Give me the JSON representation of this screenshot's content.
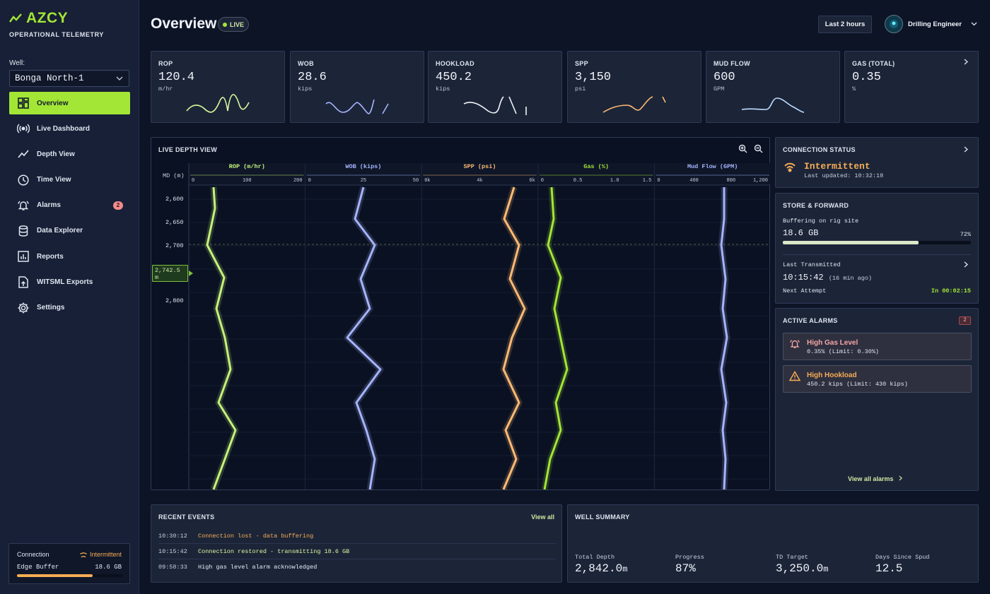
{
  "app": {
    "brand": "AZCY",
    "subtitle": "OPERATIONAL TELEMETRY"
  },
  "sidebar": {
    "well_label": "Well:",
    "well_value": "Bonga North-1",
    "items": [
      {
        "label": "Overview",
        "icon": "dashboard-grid-icon",
        "active": true
      },
      {
        "label": "Live Dashboard",
        "icon": "broadcast-icon"
      },
      {
        "label": "Depth View",
        "icon": "trend-line-icon"
      },
      {
        "label": "Time View",
        "icon": "clock-icon"
      },
      {
        "label": "Alarms",
        "icon": "bell-icon",
        "badge": "2"
      },
      {
        "label": "Data Explorer",
        "icon": "database-icon"
      },
      {
        "label": "Reports",
        "icon": "report-chart-icon"
      },
      {
        "label": "WITSML Exports",
        "icon": "file-export-icon"
      },
      {
        "label": "Settings",
        "icon": "gear-icon"
      }
    ],
    "connection": {
      "label": "Connection",
      "status": "Intermittent",
      "buffer_label": "Edge Buffer",
      "buffer_value": "18.6 GB",
      "buffer_fraction": 0.72
    }
  },
  "header": {
    "title": "Overview",
    "live": "LIVE",
    "range": "Last 2 hours",
    "user": "Drilling Engineer"
  },
  "metrics": [
    {
      "label": "ROP",
      "value": "120.4",
      "unit": "m/hr",
      "color": "#d9f99d"
    },
    {
      "label": "WOB",
      "value": "28.6",
      "unit": "kips",
      "color": "#a5b4fc"
    },
    {
      "label": "HOOKLOAD",
      "value": "450.2",
      "unit": "kips",
      "color": "#f1f5f9"
    },
    {
      "label": "SPP",
      "value": "3,150",
      "unit": "psi",
      "color": "#fdba74"
    },
    {
      "label": "MUD FLOW",
      "value": "600",
      "unit": "GPM",
      "color": "#bfdbfe"
    },
    {
      "label": "GAS (TOTAL)",
      "value": "0.35",
      "unit": "%",
      "color": "#a3e635"
    }
  ],
  "depth_view": {
    "title": "LIVE DEPTH VIEW",
    "md_label": "MD (m)",
    "depth_labels": [
      "2,600",
      "2,650",
      "2,700",
      "2,800"
    ],
    "current_depth": "2,742.5 m",
    "tracks": [
      {
        "name": "ROP (m/hr)",
        "color": "#c5f27a",
        "ticks": [
          "0",
          "100",
          "200"
        ]
      },
      {
        "name": "WOB (kips)",
        "color": "#a5b4fc",
        "ticks": [
          "0",
          "25",
          "50"
        ]
      },
      {
        "name": "SPP (psi)",
        "color": "#fdba74",
        "ticks": [
          "0k",
          "4k",
          "6k"
        ]
      },
      {
        "name": "Gas (%)",
        "color": "#a3e635",
        "ticks": [
          "0",
          "0.5",
          "1.0",
          "1.5"
        ]
      },
      {
        "name": "Mud Flow (GPM)",
        "color": "#a5b4fc",
        "ticks": [
          "0",
          "400",
          "800",
          "1,200"
        ]
      }
    ]
  },
  "connection_status": {
    "title": "CONNECTION STATUS",
    "state": "Intermittent",
    "updated": "Last updated: 10:32:18"
  },
  "store_forward": {
    "title": "STORE & FORWARD",
    "buffering": "Buffering on rig site",
    "size": "18.6 GB",
    "percent": "72%",
    "fraction": 0.72,
    "last_tx_label": "Last Transmitted",
    "last_tx_time": "10:15:42",
    "last_tx_ago": "(16 min ago)",
    "next_label": "Next Attempt",
    "next_value": "In 00:02:15"
  },
  "active_alarms": {
    "title": "ACTIVE ALARMS",
    "count": "2",
    "items": [
      {
        "title": "High Gas Level",
        "detail": "0.35% (Limit: 0.30%)",
        "color": "#f4a6a6"
      },
      {
        "title": "High Hookload",
        "detail": "450.2 kips (Limit: 430 kips)",
        "color": "#f6ad55"
      }
    ],
    "view_all": "View all alarms"
  },
  "events": {
    "title": "RECENT EVENTS",
    "view_all": "View all",
    "rows": [
      {
        "time": "10:30:12",
        "message": "Connection lost - data buffering",
        "color": "#f6ad55"
      },
      {
        "time": "10:15:42",
        "message": "Connection restored - transmitting 18.6 GB",
        "color": "#d9f99d"
      },
      {
        "time": "09:58:33",
        "message": "High gas level alarm acknowledged",
        "color": "#e6ebf5"
      }
    ]
  },
  "summary": {
    "title": "WELL SUMMARY",
    "items": [
      {
        "label": "Total Depth",
        "value": "2,842.0",
        "unit": "m"
      },
      {
        "label": "Progress",
        "value": "87%",
        "unit": ""
      },
      {
        "label": "TD Target",
        "value": "3,250.0",
        "unit": "m"
      },
      {
        "label": "Days Since Spud",
        "value": "12.5",
        "unit": ""
      }
    ]
  }
}
